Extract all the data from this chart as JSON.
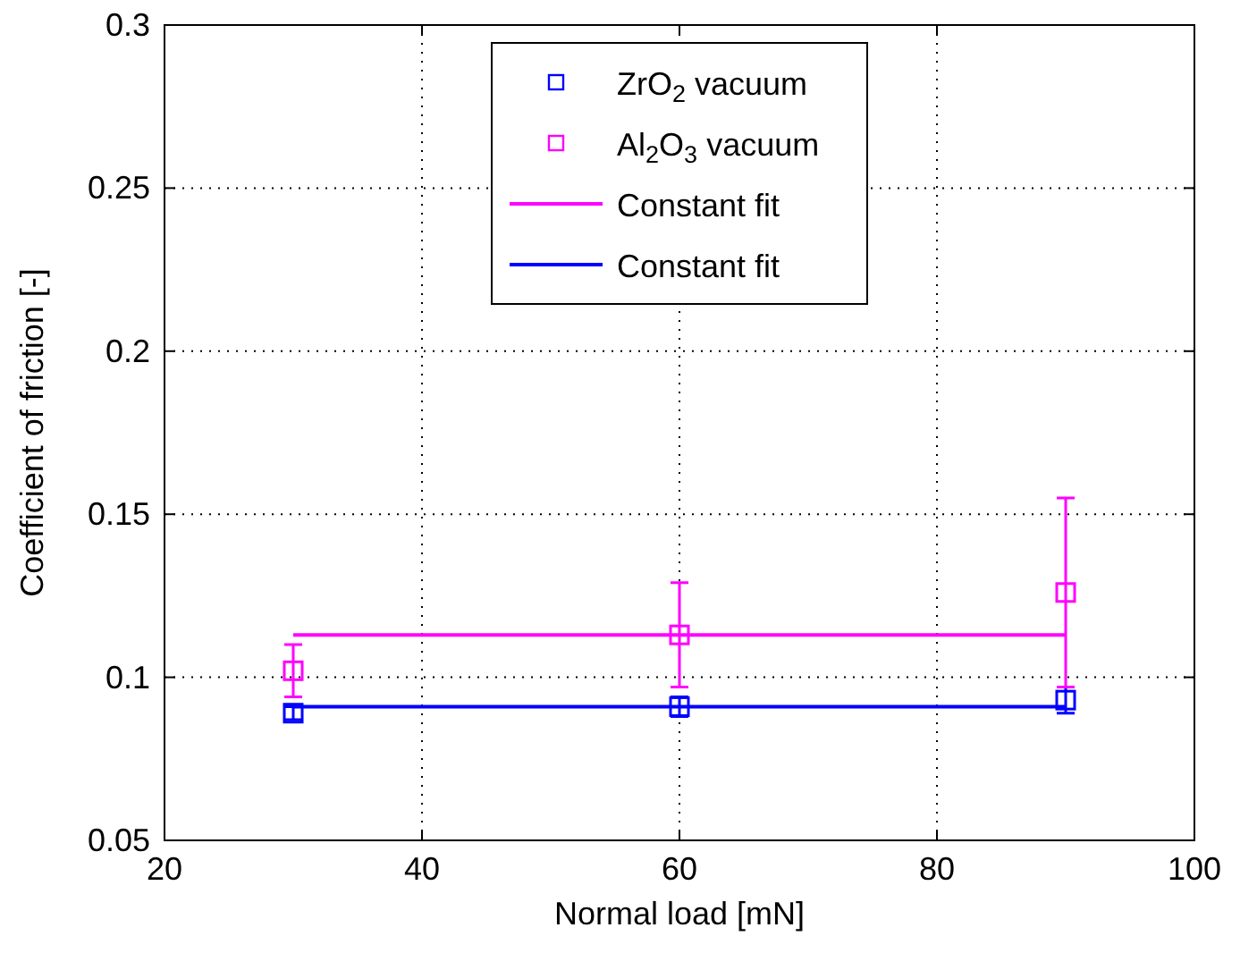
{
  "chart_data": {
    "type": "scatter",
    "xlabel": "Normal load [mN]",
    "ylabel": "Coefficient of friction [-]",
    "xlim": [
      20,
      100
    ],
    "xticks": [
      20,
      40,
      60,
      80,
      100
    ],
    "ylim": [
      0.05,
      0.3
    ],
    "yticks": [
      0.05,
      0.1,
      0.15,
      0.2,
      0.25,
      0.3
    ],
    "grid": true,
    "legend": "top",
    "marker": "square",
    "series": [
      {
        "name": "ZrO$_{2}$ vacuum",
        "color": "#0000ff",
        "x": [
          30,
          60,
          90
        ],
        "values": [
          0.089,
          0.091,
          0.093
        ],
        "errors": [
          0.002,
          0.003,
          0.004
        ]
      },
      {
        "name": "Al$_{2}$O$_{3}$ vacuum",
        "color": "#ff00ff",
        "x": [
          30,
          60,
          90
        ],
        "values": [
          0.102,
          0.113,
          0.126
        ],
        "errors": [
          [
            0.094,
            0.11
          ],
          [
            0.097,
            0.129
          ],
          [
            0.097,
            0.155
          ]
        ]
      },
      {
        "name": "Constant fit",
        "type": "line",
        "color": "#ff00ff",
        "x": [
          30,
          90
        ],
        "values": [
          0.113,
          0.113
        ],
        "marker": "none",
        "line_style": "solid"
      },
      {
        "name": "Constant fit",
        "type": "line",
        "color": "#0000ff",
        "x": [
          30,
          90
        ],
        "values": [
          0.091,
          0.091
        ],
        "marker": "none",
        "line_style": "solid"
      }
    ]
  }
}
